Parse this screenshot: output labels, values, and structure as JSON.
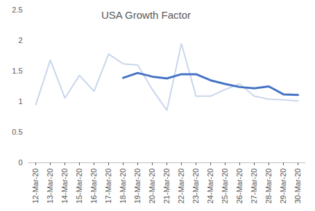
{
  "chart_data": {
    "type": "line",
    "title": "USA Growth Factor",
    "categories": [
      "12-Mar-20",
      "13-Mar-20",
      "14-Mar-20",
      "15-Mar-20",
      "16-Mar-20",
      "17-Mar-20",
      "18-Mar-20",
      "19-Mar-20",
      "20-Mar-20",
      "21-Mar-20",
      "22-Mar-20",
      "23-Mar-20",
      "24-Mar-20",
      "25-Mar-20",
      "26-Mar-20",
      "27-Mar-20",
      "28-Mar-20",
      "29-Mar-20",
      "30-Mar-20"
    ],
    "series": [
      {
        "color": "#c9d6ec",
        "values": [
          0.95,
          1.68,
          1.06,
          1.43,
          1.17,
          1.78,
          1.62,
          1.6,
          1.2,
          0.86,
          1.95,
          1.09,
          1.09,
          1.2,
          1.29,
          1.09,
          1.04,
          1.03,
          1.01
        ]
      },
      {
        "color": "#4472c4",
        "values": [
          null,
          null,
          null,
          null,
          null,
          null,
          1.39,
          1.47,
          1.41,
          1.38,
          1.45,
          1.45,
          1.35,
          1.29,
          1.24,
          1.22,
          1.25,
          1.12,
          1.11
        ]
      }
    ],
    "ylim": [
      0,
      2.5
    ],
    "yticks": [
      0,
      0.5,
      1,
      1.5,
      2,
      2.5
    ],
    "grid": false
  }
}
